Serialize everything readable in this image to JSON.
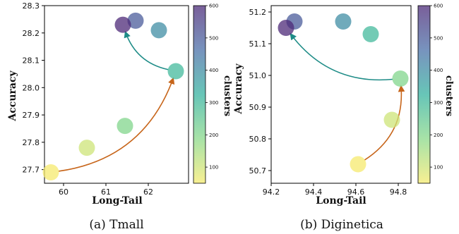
{
  "chart_data": [
    {
      "type": "scatter",
      "caption": "(a) Tmall",
      "xlabel": "Long-Tail",
      "ylabel": "Accuracy",
      "colorbar_label": "clusters",
      "xlim": [
        59.55,
        62.95
      ],
      "ylim": [
        27.65,
        28.3
      ],
      "xticks": [
        "60",
        "61",
        "62"
      ],
      "yticks": [
        "27.7",
        "27.8",
        "27.9",
        "28.0",
        "28.1",
        "28.2",
        "28.3"
      ],
      "colorbar_range": [
        50,
        600
      ],
      "colorbar_ticks": [
        "100",
        "200",
        "300",
        "400",
        "500",
        "600"
      ],
      "points": [
        {
          "x": 59.7,
          "y": 27.69,
          "clusters": 50
        },
        {
          "x": 60.55,
          "y": 27.78,
          "clusters": 100
        },
        {
          "x": 61.45,
          "y": 27.86,
          "clusters": 200
        },
        {
          "x": 62.65,
          "y": 28.06,
          "clusters": 300
        },
        {
          "x": 62.25,
          "y": 28.21,
          "clusters": 400
        },
        {
          "x": 61.7,
          "y": 28.245,
          "clusters": 500
        },
        {
          "x": 61.4,
          "y": 28.23,
          "clusters": 600
        }
      ],
      "arrows": [
        {
          "from": [
            59.7,
            27.69
          ],
          "to": [
            62.65,
            28.06
          ],
          "color": "#c7651a"
        },
        {
          "from": [
            62.65,
            28.06
          ],
          "to": [
            61.4,
            28.23
          ],
          "color": "#1e8c87"
        }
      ]
    },
    {
      "type": "scatter",
      "caption": "(b) Diginetica",
      "xlabel": "Long-Tail",
      "ylabel": "Accuracy",
      "colorbar_label": "clusters",
      "xlim": [
        94.2,
        94.86
      ],
      "ylim": [
        50.66,
        51.22
      ],
      "xticks": [
        "94.2",
        "94.4",
        "94.6",
        "94.8"
      ],
      "yticks": [
        "50.7",
        "50.8",
        "50.9",
        "51.0",
        "51.1",
        "51.2"
      ],
      "colorbar_range": [
        50,
        600
      ],
      "colorbar_ticks": [
        "100",
        "200",
        "300",
        "400",
        "500",
        "600"
      ],
      "points": [
        {
          "x": 94.61,
          "y": 50.72,
          "clusters": 50
        },
        {
          "x": 94.77,
          "y": 50.86,
          "clusters": 100
        },
        {
          "x": 94.81,
          "y": 50.99,
          "clusters": 200
        },
        {
          "x": 94.67,
          "y": 51.13,
          "clusters": 300
        },
        {
          "x": 94.54,
          "y": 51.17,
          "clusters": 400
        },
        {
          "x": 94.31,
          "y": 51.17,
          "clusters": 500
        },
        {
          "x": 94.27,
          "y": 51.15,
          "clusters": 600
        }
      ],
      "arrows": [
        {
          "from": [
            94.61,
            50.72
          ],
          "to": [
            94.81,
            50.99
          ],
          "color": "#c7651a"
        },
        {
          "from": [
            94.81,
            50.99
          ],
          "to": [
            94.27,
            51.15
          ],
          "color": "#1e8c87"
        }
      ]
    }
  ]
}
